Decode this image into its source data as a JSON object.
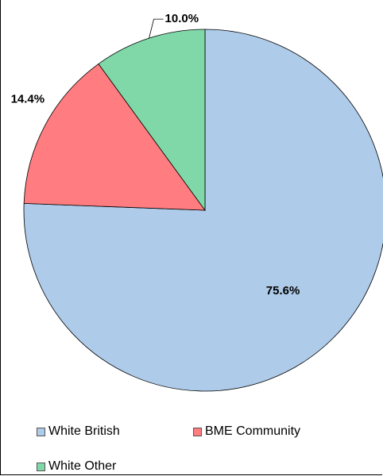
{
  "chart_data": {
    "type": "pie",
    "title": "",
    "categories": [
      "White British",
      "BME Community",
      "White Other"
    ],
    "values": [
      75.6,
      14.4,
      10.0
    ],
    "value_labels": [
      "75.6%",
      "14.4%",
      "10.0%"
    ],
    "colors": [
      "#AECBEA",
      "#FF7C80",
      "#80D8A8"
    ],
    "start_angle_deg": 0,
    "direction": "clockwise",
    "legend_position": "bottom"
  }
}
